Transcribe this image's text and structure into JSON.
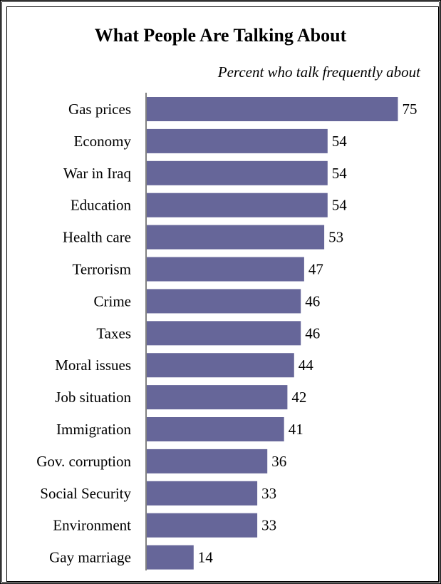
{
  "chart_data": {
    "type": "bar",
    "orientation": "horizontal",
    "title": "What People Are Talking About",
    "subtitle": "Percent who talk frequently about",
    "xlabel": "",
    "ylabel": "",
    "xlim": [
      0,
      80
    ],
    "grid": false,
    "legend": "none",
    "categories": [
      "Gas prices",
      "Economy",
      "War in Iraq",
      "Education",
      "Health care",
      "Terrorism",
      "Crime",
      "Taxes",
      "Moral issues",
      "Job situation",
      "Immigration",
      "Gov. corruption",
      "Social Security",
      "Environment",
      "Gay marriage"
    ],
    "values": [
      75,
      54,
      54,
      54,
      53,
      47,
      46,
      46,
      44,
      42,
      41,
      36,
      33,
      33,
      14
    ],
    "bar_color": "#666699"
  }
}
